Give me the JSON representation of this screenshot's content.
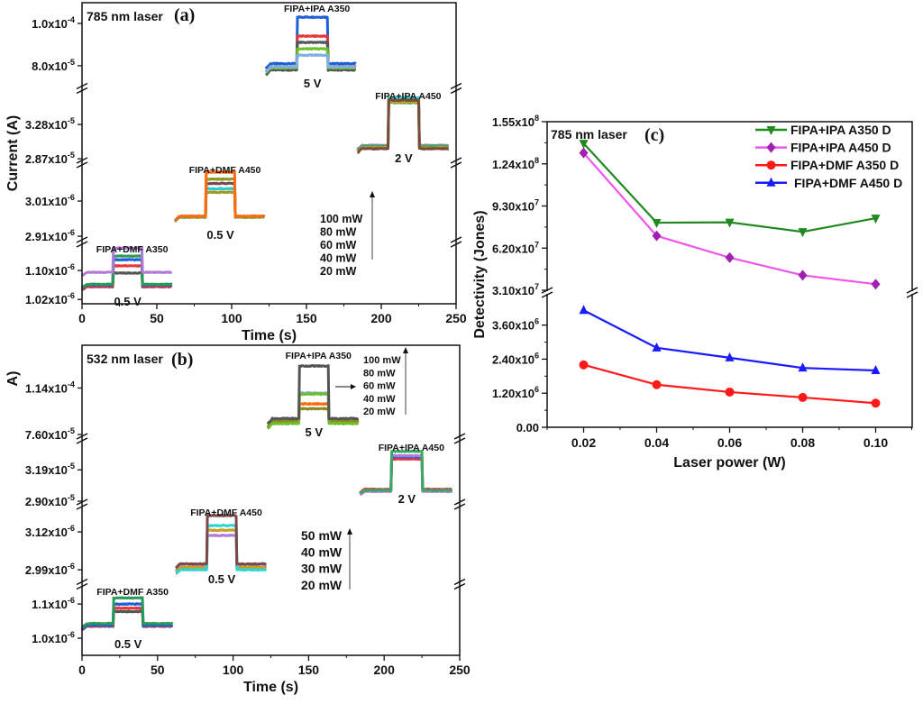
{
  "chart_data": [
    {
      "panel": "a",
      "type": "line",
      "laser_label": "785 nm laser",
      "panel_label": "(a)",
      "xlabel": "Time (s)",
      "ylabel": "Current (A)",
      "xlim": [
        0,
        250
      ],
      "xticks": [
        0,
        50,
        100,
        150,
        200,
        250
      ],
      "y_axis_broken": true,
      "power_legend": {
        "items": [
          "100 mW",
          "80 mW",
          "60 mW",
          "40 mW",
          "20 mW"
        ],
        "arrow": "up"
      },
      "segments": [
        {
          "label": "FIPA+IPA A350",
          "bias": "5 V",
          "ylim": [
            7.06e-05,
            0.0001098
          ],
          "yticks": [
            {
              "value": 0.0001,
              "mant": "1.0x10",
              "exp": "-4"
            },
            {
              "value": 8e-05,
              "mant": "8.0x10",
              "exp": "-5"
            }
          ],
          "time": [
            123,
            183
          ],
          "light_on": [
            144,
            164
          ],
          "traces": [
            {
              "color": "#1f5fd6",
              "dark": 8.1e-05,
              "photo": 0.000103
            },
            {
              "color": "#e8373a",
              "dark": 7.95e-05,
              "photo": 9.4e-05
            },
            {
              "color": "#555555",
              "dark": 7.8e-05,
              "photo": 9.1e-05
            },
            {
              "color": "#6cbf2a",
              "dark": 7.9e-05,
              "photo": 8.8e-05
            },
            {
              "color": "#7fb0e0",
              "dark": 7.95e-05,
              "photo": 8.5e-05
            }
          ]
        },
        {
          "label": "FIPA+IPA A450",
          "bias": "2 V",
          "ylim": [
            2.85e-05,
            3.69e-05
          ],
          "yticks": [
            {
              "value": 3.28e-05,
              "mant": "3.28x10",
              "exp": "-5"
            },
            {
              "value": 2.87e-05,
              "mant": "2.87x10",
              "exp": "-5"
            }
          ],
          "time": [
            184,
            245
          ],
          "light_on": [
            205,
            225
          ],
          "traces": [
            {
              "color": "#2fd3d3",
              "dark": 3.02e-05,
              "photo": 3.6e-05
            },
            {
              "color": "#b07ad8",
              "dark": 3.03e-05,
              "photo": 3.57e-05
            },
            {
              "color": "#3aa860",
              "dark": 3.02e-05,
              "photo": 3.54e-05
            },
            {
              "color": "#c8a020",
              "dark": 3e-05,
              "photo": 3.55e-05
            },
            {
              "color": "#7a4a3a",
              "dark": 2.99e-05,
              "photo": 3.57e-05
            }
          ]
        },
        {
          "label": "FIPA+DMF A450",
          "bias": "0.5 V",
          "ylim": [
            2.9e-06,
            3.115e-06
          ],
          "yticks": [
            {
              "value": 3.01e-06,
              "mant": "3.01x10",
              "exp": "-6"
            },
            {
              "value": 2.91e-06,
              "mant": "2.91x10",
              "exp": "-6"
            }
          ],
          "time": [
            62,
            122
          ],
          "light_on": [
            83,
            102
          ],
          "traces": [
            {
              "color": "#a09a20",
              "dark": 2.964e-06,
              "photo": 3.035e-06
            },
            {
              "color": "#2fc8d0",
              "dark": 2.965e-06,
              "photo": 3.045e-06
            },
            {
              "color": "#7a4a4a",
              "dark": 2.966e-06,
              "photo": 3.06e-06
            },
            {
              "color": "#8a9a20",
              "dark": 2.965e-06,
              "photo": 3.072e-06
            },
            {
              "color": "#ff6a10",
              "dark": 2.967e-06,
              "photo": 3.092e-06
            }
          ]
        },
        {
          "label": "FIPA+DMF A350",
          "bias": "0.5 V",
          "ylim": [
            1.008e-06,
            1.175e-06
          ],
          "yticks": [
            {
              "value": 1.1e-06,
              "mant": "1.10x10",
              "exp": "-6"
            },
            {
              "value": 1.02e-06,
              "mant": "1.02x10",
              "exp": "-6"
            }
          ],
          "time": [
            0,
            60
          ],
          "light_on": [
            21,
            40
          ],
          "traces": [
            {
              "color": "#555555",
              "dark": 1.055e-06,
              "photo": 1.093e-06
            },
            {
              "color": "#e8373a",
              "dark": 1.056e-06,
              "photo": 1.113e-06
            },
            {
              "color": "#1f5fd6",
              "dark": 1.06e-06,
              "photo": 1.13e-06
            },
            {
              "color": "#2a9a58",
              "dark": 1.062e-06,
              "photo": 1.14e-06
            },
            {
              "color": "#b07ad8",
              "dark": 1.095e-06,
              "photo": 1.162e-06
            }
          ]
        }
      ]
    },
    {
      "panel": "b",
      "type": "line",
      "laser_label": "532 nm laser",
      "panel_label": "(b)",
      "xlabel": "Time (s)",
      "ylabel": "A)",
      "xlim": [
        0,
        250
      ],
      "xticks": [
        0,
        50,
        100,
        150,
        200,
        250
      ],
      "y_axis_broken": true,
      "power_legend": {
        "items": [
          "100 mW",
          "80 mW",
          "60 mW",
          "40 mW",
          "20 mW"
        ],
        "arrow": "up"
      },
      "power_legend_2": {
        "items": [
          "50 mW",
          "40 mW",
          "30 mW",
          "20 mW"
        ],
        "arrow": "up"
      },
      "segments": [
        {
          "label": "FIPA+IPA A350",
          "bias": "5 V",
          "ylim": [
            7.6e-05,
            0.000149
          ],
          "yticks": [
            {
              "value": 0.000114,
              "mant": "1.14x10",
              "exp": "-4"
            },
            {
              "value": 7.6e-05,
              "mant": "7.60x10",
              "exp": "-5"
            }
          ],
          "time": [
            123,
            183
          ],
          "light_on": [
            144,
            163
          ],
          "traces": [
            {
              "color": "#7fb0e0",
              "dark": 8.6e-05,
              "photo": 0.00011
            },
            {
              "color": "#ff6a10",
              "dark": 8.6e-05,
              "photo": 0.000101
            },
            {
              "color": "#8a8a20",
              "dark": 8.7e-05,
              "photo": 9.7e-05
            },
            {
              "color": "#6cbf2a",
              "dark": 8.5e-05,
              "photo": 0.000109
            },
            {
              "color": "#555555",
              "dark": 8.9e-05,
              "photo": 0.000132
            }
          ]
        },
        {
          "label": "FIPA+IPA A450",
          "bias": "2 V",
          "ylim": [
            2.9e-05,
            3.45e-05
          ],
          "yticks": [
            {
              "value": 3.19e-05,
              "mant": "3.19x10",
              "exp": "-5"
            },
            {
              "value": 2.9e-05,
              "mant": "2.90x10",
              "exp": "-5"
            }
          ],
          "time": [
            184,
            245
          ],
          "light_on": [
            205,
            225
          ],
          "traces": [
            {
              "color": "#e8373a",
              "dark": 3.01e-05,
              "photo": 3.29e-05
            },
            {
              "color": "#1f5fd6",
              "dark": 3e-05,
              "photo": 3.31e-05
            },
            {
              "color": "#b07ad8",
              "dark": 2.99e-05,
              "photo": 3.32e-05
            },
            {
              "color": "#3aa860",
              "dark": 3e-05,
              "photo": 3.36e-05
            }
          ]
        },
        {
          "label": "FIPA+DMF A450",
          "bias": "0.5 V",
          "ylim": [
            2.95e-06,
            3.207e-06
          ],
          "yticks": [
            {
              "value": 3.12e-06,
              "mant": "3.12x10",
              "exp": "-6"
            },
            {
              "value": 2.99e-06,
              "mant": "2.99x10",
              "exp": "-6"
            }
          ],
          "time": [
            62,
            122
          ],
          "light_on": [
            83,
            102
          ],
          "traces": [
            {
              "color": "#b07ad8",
              "dark": 3e-06,
              "photo": 3.108e-06
            },
            {
              "color": "#c8a020",
              "dark": 2.998e-06,
              "photo": 3.126e-06
            },
            {
              "color": "#2fd3d3",
              "dark": 2.99e-06,
              "photo": 3.142e-06
            },
            {
              "color": "#7a4a4a",
              "dark": 3.01e-06,
              "photo": 3.176e-06
            }
          ]
        },
        {
          "label": "FIPA+DMF A350",
          "bias": "0.5 V",
          "ylim": [
            9.5e-07,
            1.153e-06
          ],
          "yticks": [
            {
              "value": 1.1e-06,
              "mant": "1.1x10",
              "exp": "-6"
            },
            {
              "value": 1e-06,
              "mant": "1.0x10",
              "exp": "-6"
            }
          ],
          "time": [
            0,
            60
          ],
          "light_on": [
            21,
            40
          ],
          "traces": [
            {
              "color": "#555555",
              "dark": 1.035e-06,
              "photo": 1.078e-06
            },
            {
              "color": "#e8373a",
              "dark": 1.036e-06,
              "photo": 1.088e-06
            },
            {
              "color": "#1f5fd6",
              "dark": 1.038e-06,
              "photo": 1.1e-06
            },
            {
              "color": "#2a9a58",
              "dark": 1.043e-06,
              "photo": 1.118e-06
            }
          ]
        }
      ]
    },
    {
      "panel": "c",
      "type": "line",
      "laser_label": "785 nm laser",
      "panel_label": "(c)",
      "xlabel": "Laser power (W)",
      "ylabel": "Detectivity (Jones)",
      "xlim": [
        0.01,
        0.11
      ],
      "xticks": [
        "0.02",
        "0.04",
        "0.06",
        "0.08",
        "0.10"
      ],
      "y_axis_broken": true,
      "y_segments": [
        {
          "ylim": [
            31000000.0,
            155000000.0
          ],
          "yticks": [
            {
              "value": 155000000.0,
              "mant": "1.55x10",
              "exp": "8"
            },
            {
              "value": 124000000.0,
              "mant": "1.24x10",
              "exp": "8"
            },
            {
              "value": 93000000.0,
              "mant": "9.30x10",
              "exp": "7"
            },
            {
              "value": 62000000.0,
              "mant": "6.20x10",
              "exp": "7"
            },
            {
              "value": 31000000.0,
              "mant": "3.10x10",
              "exp": "7"
            }
          ]
        },
        {
          "ylim": [
            0,
            4700000.0
          ],
          "yticks": [
            {
              "value": 3600000.0,
              "mant": "3.60x10",
              "exp": "6"
            },
            {
              "value": 2400000.0,
              "mant": "2.40x10",
              "exp": "6"
            },
            {
              "value": 1200000.0,
              "mant": "1.20x10",
              "exp": "6"
            },
            {
              "value": 0,
              "mant": "0.00",
              "exp": ""
            }
          ]
        }
      ],
      "legend_position": "top-right",
      "x": [
        0.02,
        0.04,
        0.06,
        0.08,
        0.1
      ],
      "series": [
        {
          "name": "FIPA+IPA A350 D",
          "color": "#1f8a1f",
          "marker": "triangle-down",
          "segment": 0,
          "values": [
            139000000.0,
            80700000.0,
            81000000.0,
            74000000.0,
            84000000.0
          ]
        },
        {
          "name": "FIPA+IPA A450 D",
          "color": "#ee55ee",
          "marker_color": "#a020b0",
          "marker": "diamond",
          "segment": 0,
          "values": [
            132000000.0,
            71000000.0,
            55000000.0,
            42000000.0,
            35500000.0
          ]
        },
        {
          "name": "FIPA+DMF A350 D",
          "color": "#ff1a1a",
          "marker": "circle",
          "segment": 1,
          "values": [
            2200000.0,
            1500000.0,
            1240000.0,
            1050000.0,
            850000.0
          ]
        },
        {
          "name": "FIPA+DMF A450 D",
          "color": "#1a1aff",
          "marker": "triangle-up",
          "segment": 1,
          "values": [
            4120000.0,
            2800000.0,
            2450000.0,
            2090000.0,
            2000000.0
          ]
        }
      ]
    }
  ]
}
